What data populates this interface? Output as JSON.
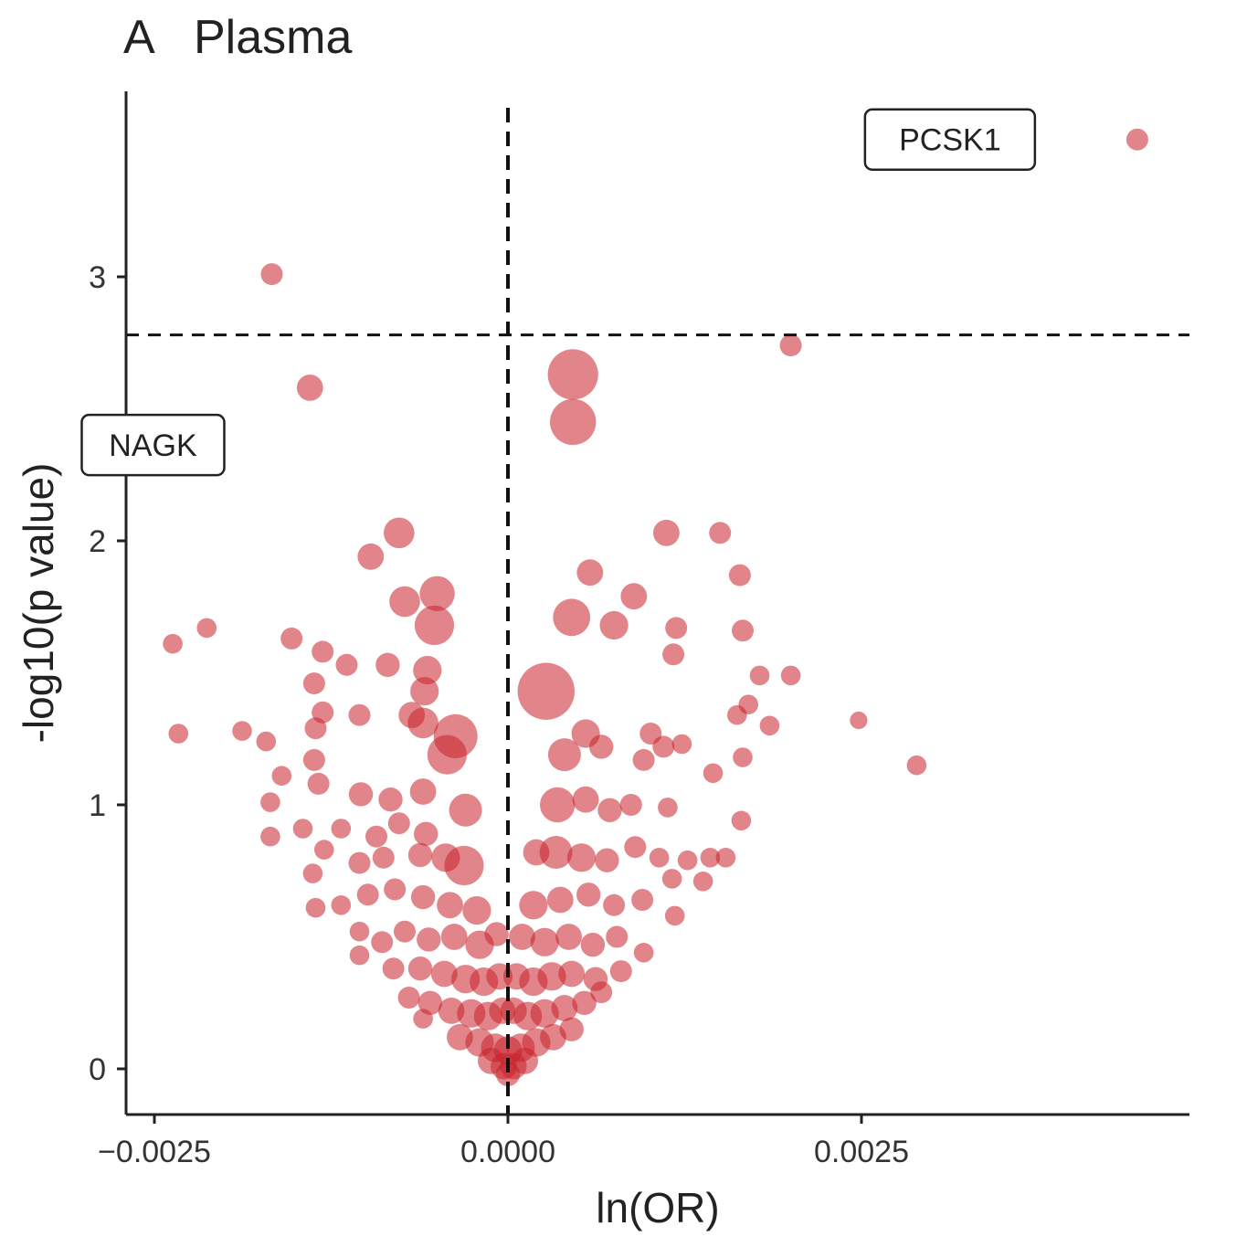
{
  "chart_data": {
    "type": "scatter",
    "panel_label": "A",
    "title": "Plasma",
    "xlabel": "ln(OR)",
    "ylabel": "-log10(p value)",
    "xlim": [
      -0.0026,
      0.0048
    ],
    "ylim": [
      -0.17,
      3.7
    ],
    "x_ticks": [
      {
        "value": -0.0025,
        "label": "−0.0025"
      },
      {
        "value": 0.0,
        "label": "0.0000"
      },
      {
        "value": 0.0025,
        "label": "0.0025"
      }
    ],
    "y_ticks": [
      {
        "value": 0,
        "label": "0"
      },
      {
        "value": 1,
        "label": "1"
      },
      {
        "value": 2,
        "label": "2"
      },
      {
        "value": 3,
        "label": "3"
      }
    ],
    "thresholds": {
      "x": 0.0,
      "y": 2.78
    },
    "point_color": "#c8202a",
    "labeled_points": [
      {
        "name": "PCSK1",
        "x": 0.00445,
        "y": 3.52
      },
      {
        "name": "NAGK",
        "x": -0.00167,
        "y": 3.01
      }
    ],
    "points": [
      {
        "x": 0.00445,
        "y": 3.52,
        "s": 1
      },
      {
        "x": -0.00167,
        "y": 3.01,
        "s": 1
      },
      {
        "x": 0.002,
        "y": 2.74,
        "s": 1
      },
      {
        "x": -0.0014,
        "y": 2.58,
        "s": 1.2
      },
      {
        "x": 0.00046,
        "y": 2.63,
        "s": 2.3
      },
      {
        "x": 0.00046,
        "y": 2.45,
        "s": 2.1
      },
      {
        "x": -0.00077,
        "y": 2.03,
        "s": 1.4
      },
      {
        "x": -0.00097,
        "y": 1.94,
        "s": 1.2
      },
      {
        "x": 0.00112,
        "y": 2.03,
        "s": 1.2
      },
      {
        "x": 0.0015,
        "y": 2.03,
        "s": 1.0
      },
      {
        "x": 0.00058,
        "y": 1.88,
        "s": 1.2
      },
      {
        "x": 0.00164,
        "y": 1.87,
        "s": 1.0
      },
      {
        "x": -0.0005,
        "y": 1.8,
        "s": 1.6
      },
      {
        "x": -0.00073,
        "y": 1.77,
        "s": 1.4
      },
      {
        "x": -0.00052,
        "y": 1.68,
        "s": 1.8
      },
      {
        "x": 0.00045,
        "y": 1.71,
        "s": 1.7
      },
      {
        "x": 0.00075,
        "y": 1.68,
        "s": 1.3
      },
      {
        "x": 0.00089,
        "y": 1.79,
        "s": 1.2
      },
      {
        "x": 0.00119,
        "y": 1.67,
        "s": 1.0
      },
      {
        "x": 0.00166,
        "y": 1.66,
        "s": 1.0
      },
      {
        "x": 0.00117,
        "y": 1.57,
        "s": 1.0
      },
      {
        "x": -0.00213,
        "y": 1.67,
        "s": 0.9
      },
      {
        "x": -0.00237,
        "y": 1.61,
        "s": 0.9
      },
      {
        "x": -0.00153,
        "y": 1.63,
        "s": 1.0
      },
      {
        "x": -0.00131,
        "y": 1.58,
        "s": 1.0
      },
      {
        "x": -0.00114,
        "y": 1.53,
        "s": 1.0
      },
      {
        "x": -0.00085,
        "y": 1.53,
        "s": 1.1
      },
      {
        "x": -0.00137,
        "y": 1.46,
        "s": 1.0
      },
      {
        "x": -0.00057,
        "y": 1.51,
        "s": 1.3
      },
      {
        "x": -0.00059,
        "y": 1.43,
        "s": 1.3
      },
      {
        "x": 0.00027,
        "y": 1.43,
        "s": 2.6
      },
      {
        "x": 0.00178,
        "y": 1.49,
        "s": 0.9
      },
      {
        "x": 0.002,
        "y": 1.49,
        "s": 0.9
      },
      {
        "x": 0.0017,
        "y": 1.38,
        "s": 0.9
      },
      {
        "x": 0.00162,
        "y": 1.34,
        "s": 0.9
      },
      {
        "x": -0.00131,
        "y": 1.35,
        "s": 1.0
      },
      {
        "x": -0.00105,
        "y": 1.34,
        "s": 1.0
      },
      {
        "x": -0.00068,
        "y": 1.34,
        "s": 1.2
      },
      {
        "x": -0.0006,
        "y": 1.31,
        "s": 1.4
      },
      {
        "x": -0.00037,
        "y": 1.26,
        "s": 2.0
      },
      {
        "x": -0.00043,
        "y": 1.19,
        "s": 1.8
      },
      {
        "x": 0.00055,
        "y": 1.27,
        "s": 1.3
      },
      {
        "x": 0.00066,
        "y": 1.22,
        "s": 1.1
      },
      {
        "x": 0.0004,
        "y": 1.19,
        "s": 1.5
      },
      {
        "x": 0.00101,
        "y": 1.27,
        "s": 1.0
      },
      {
        "x": 0.0011,
        "y": 1.22,
        "s": 1.0
      },
      {
        "x": 0.00123,
        "y": 1.23,
        "s": 0.9
      },
      {
        "x": 0.00096,
        "y": 1.17,
        "s": 1.0
      },
      {
        "x": 0.00185,
        "y": 1.3,
        "s": 0.9
      },
      {
        "x": 0.00248,
        "y": 1.32,
        "s": 0.8
      },
      {
        "x": 0.00289,
        "y": 1.15,
        "s": 0.9
      },
      {
        "x": 0.00166,
        "y": 1.18,
        "s": 0.9
      },
      {
        "x": 0.00145,
        "y": 1.12,
        "s": 0.9
      },
      {
        "x": -0.00233,
        "y": 1.27,
        "s": 0.9
      },
      {
        "x": -0.00188,
        "y": 1.28,
        "s": 0.9
      },
      {
        "x": -0.00171,
        "y": 1.24,
        "s": 0.9
      },
      {
        "x": -0.00136,
        "y": 1.29,
        "s": 1.0
      },
      {
        "x": -0.00137,
        "y": 1.17,
        "s": 1.0
      },
      {
        "x": -0.0016,
        "y": 1.11,
        "s": 0.9
      },
      {
        "x": -0.00134,
        "y": 1.08,
        "s": 1.0
      },
      {
        "x": -0.00104,
        "y": 1.04,
        "s": 1.1
      },
      {
        "x": -0.00083,
        "y": 1.02,
        "s": 1.1
      },
      {
        "x": -0.0006,
        "y": 1.05,
        "s": 1.2
      },
      {
        "x": -0.0003,
        "y": 0.98,
        "s": 1.5
      },
      {
        "x": 0.00035,
        "y": 1.0,
        "s": 1.6
      },
      {
        "x": 0.00055,
        "y": 1.02,
        "s": 1.2
      },
      {
        "x": 0.00072,
        "y": 0.98,
        "s": 1.1
      },
      {
        "x": 0.00087,
        "y": 1.0,
        "s": 1.0
      },
      {
        "x": 0.00113,
        "y": 0.99,
        "s": 0.9
      },
      {
        "x": 0.00165,
        "y": 0.94,
        "s": 0.9
      },
      {
        "x": -0.00168,
        "y": 1.01,
        "s": 0.9
      },
      {
        "x": -0.00168,
        "y": 0.88,
        "s": 0.9
      },
      {
        "x": -0.00145,
        "y": 0.91,
        "s": 0.9
      },
      {
        "x": -0.00118,
        "y": 0.91,
        "s": 0.9
      },
      {
        "x": -0.00093,
        "y": 0.88,
        "s": 1.0
      },
      {
        "x": -0.00077,
        "y": 0.93,
        "s": 1.0
      },
      {
        "x": -0.00058,
        "y": 0.89,
        "s": 1.1
      },
      {
        "x": -0.00031,
        "y": 0.77,
        "s": 1.8
      },
      {
        "x": -0.00044,
        "y": 0.8,
        "s": 1.3
      },
      {
        "x": -0.00062,
        "y": 0.81,
        "s": 1.1
      },
      {
        "x": -0.00088,
        "y": 0.8,
        "s": 1.0
      },
      {
        "x": -0.00105,
        "y": 0.78,
        "s": 1.0
      },
      {
        "x": -0.0013,
        "y": 0.83,
        "s": 0.9
      },
      {
        "x": -0.00138,
        "y": 0.74,
        "s": 0.9
      },
      {
        "x": 0.0002,
        "y": 0.82,
        "s": 1.2
      },
      {
        "x": 0.00034,
        "y": 0.82,
        "s": 1.5
      },
      {
        "x": 0.00052,
        "y": 0.8,
        "s": 1.3
      },
      {
        "x": 0.0007,
        "y": 0.79,
        "s": 1.1
      },
      {
        "x": 0.0009,
        "y": 0.84,
        "s": 1.0
      },
      {
        "x": 0.00107,
        "y": 0.8,
        "s": 0.9
      },
      {
        "x": 0.00127,
        "y": 0.79,
        "s": 0.9
      },
      {
        "x": 0.00143,
        "y": 0.8,
        "s": 0.9
      },
      {
        "x": 0.00154,
        "y": 0.8,
        "s": 0.9
      },
      {
        "x": 0.00116,
        "y": 0.72,
        "s": 0.9
      },
      {
        "x": 0.00138,
        "y": 0.71,
        "s": 0.9
      },
      {
        "x": -0.00136,
        "y": 0.61,
        "s": 0.9
      },
      {
        "x": -0.00118,
        "y": 0.62,
        "s": 0.9
      },
      {
        "x": -0.00099,
        "y": 0.66,
        "s": 1.0
      },
      {
        "x": -0.0008,
        "y": 0.68,
        "s": 1.0
      },
      {
        "x": -0.0006,
        "y": 0.65,
        "s": 1.1
      },
      {
        "x": -0.00041,
        "y": 0.62,
        "s": 1.2
      },
      {
        "x": -0.00022,
        "y": 0.6,
        "s": 1.3
      },
      {
        "x": 0.00018,
        "y": 0.62,
        "s": 1.3
      },
      {
        "x": 0.00037,
        "y": 0.64,
        "s": 1.2
      },
      {
        "x": 0.00057,
        "y": 0.66,
        "s": 1.1
      },
      {
        "x": 0.00075,
        "y": 0.62,
        "s": 1.0
      },
      {
        "x": 0.00095,
        "y": 0.64,
        "s": 1.0
      },
      {
        "x": 0.00118,
        "y": 0.58,
        "s": 0.9
      },
      {
        "x": -0.00105,
        "y": 0.52,
        "s": 0.9
      },
      {
        "x": -0.00089,
        "y": 0.48,
        "s": 1.0
      },
      {
        "x": -0.00073,
        "y": 0.52,
        "s": 1.0
      },
      {
        "x": -0.00056,
        "y": 0.49,
        "s": 1.1
      },
      {
        "x": -0.00038,
        "y": 0.5,
        "s": 1.2
      },
      {
        "x": -0.0002,
        "y": 0.47,
        "s": 1.3
      },
      {
        "x": -8e-05,
        "y": 0.51,
        "s": 1.1
      },
      {
        "x": 0.0001,
        "y": 0.5,
        "s": 1.2
      },
      {
        "x": 0.00026,
        "y": 0.48,
        "s": 1.3
      },
      {
        "x": 0.00043,
        "y": 0.5,
        "s": 1.2
      },
      {
        "x": 0.0006,
        "y": 0.47,
        "s": 1.1
      },
      {
        "x": 0.00077,
        "y": 0.5,
        "s": 1.0
      },
      {
        "x": 0.00096,
        "y": 0.44,
        "s": 0.9
      },
      {
        "x": -0.00105,
        "y": 0.43,
        "s": 0.9
      },
      {
        "x": -0.00081,
        "y": 0.38,
        "s": 1.0
      },
      {
        "x": -0.00062,
        "y": 0.38,
        "s": 1.1
      },
      {
        "x": -0.00045,
        "y": 0.36,
        "s": 1.2
      },
      {
        "x": -0.0003,
        "y": 0.34,
        "s": 1.3
      },
      {
        "x": -0.00017,
        "y": 0.33,
        "s": 1.3
      },
      {
        "x": -6e-05,
        "y": 0.35,
        "s": 1.2
      },
      {
        "x": 6e-05,
        "y": 0.35,
        "s": 1.2
      },
      {
        "x": 0.00018,
        "y": 0.33,
        "s": 1.3
      },
      {
        "x": 0.00031,
        "y": 0.35,
        "s": 1.3
      },
      {
        "x": 0.00045,
        "y": 0.36,
        "s": 1.2
      },
      {
        "x": 0.00062,
        "y": 0.34,
        "s": 1.1
      },
      {
        "x": 0.0008,
        "y": 0.37,
        "s": 1.0
      },
      {
        "x": -0.0007,
        "y": 0.27,
        "s": 1.0
      },
      {
        "x": -0.00055,
        "y": 0.25,
        "s": 1.1
      },
      {
        "x": -0.0004,
        "y": 0.22,
        "s": 1.2
      },
      {
        "x": -0.00026,
        "y": 0.21,
        "s": 1.3
      },
      {
        "x": -0.00014,
        "y": 0.2,
        "s": 1.3
      },
      {
        "x": -4e-05,
        "y": 0.22,
        "s": 1.2
      },
      {
        "x": 4e-05,
        "y": 0.22,
        "s": 1.2
      },
      {
        "x": 0.00014,
        "y": 0.2,
        "s": 1.3
      },
      {
        "x": 0.00026,
        "y": 0.21,
        "s": 1.3
      },
      {
        "x": 0.0004,
        "y": 0.23,
        "s": 1.2
      },
      {
        "x": 0.00054,
        "y": 0.25,
        "s": 1.1
      },
      {
        "x": 0.00066,
        "y": 0.29,
        "s": 1.0
      },
      {
        "x": -0.0006,
        "y": 0.19,
        "s": 0.9
      },
      {
        "x": -0.00034,
        "y": 0.12,
        "s": 1.2
      },
      {
        "x": -0.0002,
        "y": 0.1,
        "s": 1.3
      },
      {
        "x": -9e-05,
        "y": 0.08,
        "s": 1.3
      },
      {
        "x": 0.0,
        "y": 0.07,
        "s": 1.3
      },
      {
        "x": 9e-05,
        "y": 0.08,
        "s": 1.3
      },
      {
        "x": 0.0002,
        "y": 0.1,
        "s": 1.3
      },
      {
        "x": 0.00032,
        "y": 0.12,
        "s": 1.2
      },
      {
        "x": 0.00045,
        "y": 0.15,
        "s": 1.1
      },
      {
        "x": -0.00012,
        "y": 0.03,
        "s": 1.2
      },
      {
        "x": -3e-05,
        "y": 0.01,
        "s": 1.2
      },
      {
        "x": 4e-05,
        "y": 0.01,
        "s": 1.2
      },
      {
        "x": 0.00012,
        "y": 0.03,
        "s": 1.2
      },
      {
        "x": 0.0,
        "y": -0.02,
        "s": 1.1
      }
    ]
  }
}
